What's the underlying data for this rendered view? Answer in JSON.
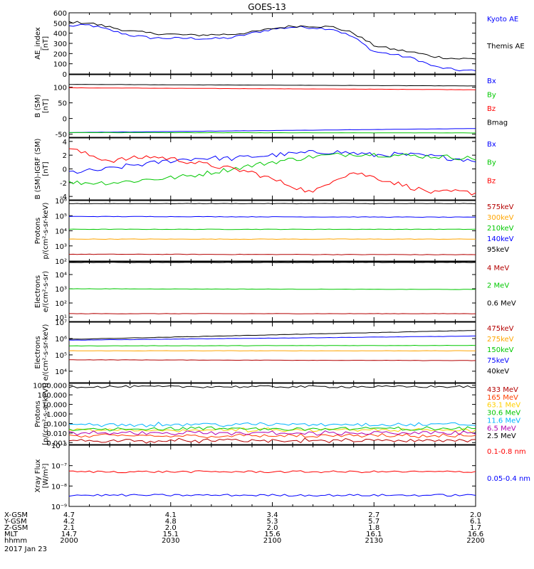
{
  "title": "GOES-13",
  "colors": {
    "blue": "#0000ff",
    "red": "#ff0000",
    "black": "#000000",
    "green": "#00c800",
    "orange": "#ffa500",
    "darkred": "#b40000",
    "yellow": "#ffd000",
    "cyan": "#00b4ff"
  },
  "chart_data": [
    {
      "id": "ae",
      "type": "line",
      "ylabel": [
        "AE_index",
        "[nT]"
      ],
      "ylim": [
        0,
        600
      ],
      "yticks": [
        "0",
        "100",
        "200",
        "300",
        "400",
        "500",
        "600"
      ],
      "series": [
        {
          "name": "Kyoto AE",
          "color": "#0000ff",
          "t": [
            0,
            10,
            20,
            30,
            40,
            50,
            60,
            70,
            80,
            90,
            100,
            110,
            120,
            130,
            140,
            150,
            160,
            170,
            180,
            190,
            200
          ],
          "y": [
            470,
            480,
            430,
            380,
            355,
            350,
            350,
            345,
            355,
            400,
            440,
            460,
            455,
            440,
            360,
            220,
            190,
            150,
            70,
            40,
            30
          ]
        },
        {
          "name": "Themis AE",
          "color": "#000000",
          "t": [
            0,
            10,
            20,
            30,
            40,
            50,
            60,
            70,
            80,
            90,
            100,
            110,
            120,
            130,
            140,
            150,
            160,
            170,
            180,
            190,
            200
          ],
          "y": [
            510,
            500,
            460,
            420,
            400,
            390,
            380,
            385,
            390,
            410,
            445,
            470,
            470,
            460,
            400,
            280,
            240,
            210,
            170,
            150,
            150
          ]
        }
      ]
    },
    {
      "id": "bsm",
      "type": "line",
      "ylabel": [
        "B (SM)",
        "[nT]"
      ],
      "ylim": [
        -60,
        140
      ],
      "yticks": [
        "-50",
        "0",
        "50",
        "100"
      ],
      "series": [
        {
          "name": "Bx",
          "color": "#0000ff",
          "t": [
            0,
            200
          ],
          "y": [
            -45,
            -32
          ]
        },
        {
          "name": "By",
          "color": "#00c800",
          "t": [
            0,
            200
          ],
          "y": [
            -45,
            -46
          ]
        },
        {
          "name": "Bz",
          "color": "#ff0000",
          "t": [
            0,
            200
          ],
          "y": [
            98,
            92
          ]
        },
        {
          "name": "Bmag",
          "color": "#000000",
          "t": [
            0,
            200
          ],
          "y": [
            109,
            104
          ]
        }
      ]
    },
    {
      "id": "bigrf",
      "type": "line",
      "ylabel": [
        "B (SM)-IGRF (SM)",
        "[nT]"
      ],
      "ylim": [
        -4.5,
        4.5
      ],
      "yticks": [
        "-4",
        "-2",
        "0",
        "2",
        "4"
      ],
      "series": [
        {
          "name": "Bx",
          "color": "#0000ff",
          "t": [
            0,
            10,
            20,
            30,
            40,
            50,
            60,
            70,
            80,
            90,
            100,
            110,
            120,
            130,
            140,
            150,
            160,
            170,
            180,
            190,
            200
          ],
          "y": [
            -0.5,
            -0.3,
            0,
            0.5,
            0.8,
            1.2,
            1.5,
            1.6,
            1.5,
            1.8,
            2,
            2.2,
            2.4,
            2.5,
            2.3,
            2,
            2.1,
            2,
            1.8,
            1.5,
            1.3
          ]
        },
        {
          "name": "By",
          "color": "#00c800",
          "t": [
            0,
            10,
            20,
            30,
            40,
            50,
            60,
            70,
            80,
            90,
            100,
            110,
            120,
            130,
            140,
            150,
            160,
            170,
            180,
            190,
            200
          ],
          "y": [
            -2,
            -2,
            -2,
            -1.8,
            -1.5,
            -1.3,
            -1,
            -0.5,
            0,
            0.5,
            1,
            1.4,
            1.8,
            2,
            2.2,
            2.1,
            2,
            1.9,
            1.8,
            1.7,
            1.5
          ]
        },
        {
          "name": "Bz",
          "color": "#ff0000",
          "t": [
            0,
            10,
            20,
            30,
            40,
            50,
            60,
            70,
            80,
            90,
            100,
            110,
            120,
            130,
            140,
            150,
            160,
            170,
            180,
            190,
            200
          ],
          "y": [
            3,
            2,
            1.2,
            1.5,
            1.8,
            1.5,
            1,
            0.5,
            0,
            -0.5,
            -1.5,
            -2.5,
            -3.5,
            -1.5,
            -0.5,
            -1.2,
            -2,
            -2.8,
            -3.5,
            -3.3,
            -3.5
          ]
        }
      ]
    },
    {
      "id": "protons",
      "type": "line",
      "ylabel": [
        "Protons",
        "p/(cm²-s-sr-keV)"
      ],
      "log": true,
      "ylim_exp": [
        2,
        6
      ],
      "yticks": [
        "10²",
        "10³",
        "10⁴",
        "10⁵",
        "10⁶"
      ],
      "series": [
        {
          "name": "575keV",
          "color": "#b40000",
          "t": [
            0,
            200
          ],
          "y_exp": [
            2.45,
            2.42
          ]
        },
        {
          "name": "300keV",
          "color": "#ffa500",
          "t": [
            0,
            200
          ],
          "y_exp": [
            3.45,
            3.45
          ]
        },
        {
          "name": "210keV",
          "color": "#00c800",
          "t": [
            0,
            200
          ],
          "y_exp": [
            4.1,
            4.1
          ]
        },
        {
          "name": "140keV",
          "color": "#0000ff",
          "t": [
            0,
            200
          ],
          "y_exp": [
            4.95,
            4.9
          ]
        },
        {
          "name": "95keV",
          "color": "#000000",
          "t": [
            0,
            200
          ],
          "y_exp": [
            5.8,
            5.8
          ]
        }
      ]
    },
    {
      "id": "electrons1",
      "type": "line",
      "ylabel": [
        "Electrons",
        "e/(cm²-s-sr)"
      ],
      "log": true,
      "ylim_exp": [
        0.7,
        4.9
      ],
      "yticks": [
        "10¹",
        "10²",
        "10³",
        "10⁴"
      ],
      "series": [
        {
          "name": "4 MeV",
          "color": "#b40000",
          "t": [
            0,
            200
          ],
          "y_exp": [
            1.25,
            1.25
          ]
        },
        {
          "name": "2 MeV",
          "color": "#00c800",
          "t": [
            0,
            200
          ],
          "y_exp": [
            3.0,
            2.95
          ]
        },
        {
          "name": "0.6 MeV",
          "color": "#000000",
          "t": [
            0,
            200
          ],
          "y_exp": [
            4.85,
            4.85
          ]
        }
      ]
    },
    {
      "id": "electrons2",
      "type": "line",
      "ylabel": [
        "Electrons",
        "e/(cm²-s-sr-keV)"
      ],
      "log": true,
      "ylim_exp": [
        3.3,
        7
      ],
      "yticks": [
        "10⁴",
        "10⁵",
        "10⁶",
        "10⁷"
      ],
      "series": [
        {
          "name": "475keV",
          "color": "#b40000",
          "t": [
            0,
            200
          ],
          "y_exp": [
            4.7,
            4.65
          ]
        },
        {
          "name": "275keV",
          "color": "#ffa500",
          "t": [
            0,
            200
          ],
          "y_exp": [
            5.25,
            5.25
          ]
        },
        {
          "name": "150keV",
          "color": "#00c800",
          "t": [
            0,
            200
          ],
          "y_exp": [
            5.55,
            5.58
          ]
        },
        {
          "name": "75keV",
          "color": "#0000ff",
          "t": [
            0,
            200
          ],
          "y_exp": [
            5.9,
            6.15
          ]
        },
        {
          "name": "40keV",
          "color": "#000000",
          "t": [
            0,
            200
          ],
          "y_exp": [
            5.95,
            6.5
          ]
        }
      ]
    },
    {
      "id": "protons2",
      "type": "line",
      "ylabel": [
        "Protons",
        "[p/(cm²-s-sr-keV)]"
      ],
      "log": true,
      "ylim_exp": [
        -3.2,
        3.2
      ],
      "yticks": [
        "0.001",
        "0.010",
        "0.100",
        "1.000",
        "10.000",
        "100.000",
        "1000.000"
      ],
      "series": [
        {
          "name": "433 MeV",
          "color": "#b40000",
          "t": [
            0,
            200
          ],
          "y_exp": [
            -2.8,
            -2.8
          ]
        },
        {
          "name": "165 MeV",
          "color": "#ff4000",
          "t": [
            0,
            200
          ],
          "y_exp": [
            -2.3,
            -2.3
          ]
        },
        {
          "name": "63.1 MeV",
          "color": "#ffd000",
          "t": [
            0,
            200
          ],
          "y_exp": [
            -1.7,
            -1.7
          ]
        },
        {
          "name": "30.6 MeV",
          "color": "#00c800",
          "t": [
            0,
            200
          ],
          "y_exp": [
            -1.55,
            -1.55
          ]
        },
        {
          "name": "11.6 MeV",
          "color": "#00b4ff",
          "t": [
            0,
            200
          ],
          "y_exp": [
            -1.1,
            -1.1
          ]
        },
        {
          "name": "6.5 MeV",
          "color": "#b000b0",
          "t": [
            0,
            200
          ],
          "y_exp": [
            -2.0,
            -2.0
          ]
        },
        {
          "name": "2.5 MeV",
          "color": "#000000",
          "t": [
            0,
            200
          ],
          "y_exp": [
            2.85,
            2.85
          ]
        }
      ]
    },
    {
      "id": "xray",
      "type": "line",
      "ylabel": [
        "Xray Flux",
        "[W/m²]"
      ],
      "log": true,
      "ylim_exp": [
        -9,
        -6
      ],
      "yticks": [
        "10⁻⁹",
        "10⁻⁸",
        "10⁻⁷",
        "10⁻⁶"
      ],
      "series": [
        {
          "name": "0.1-0.8 nm",
          "color": "#ff0000",
          "t": [
            0,
            200
          ],
          "y_exp": [
            -7.3,
            -7.3
          ]
        },
        {
          "name": "0.05-0.4 nm",
          "color": "#0000ff",
          "t": [
            0,
            200
          ],
          "y_exp": [
            -8.45,
            -8.45
          ]
        }
      ]
    }
  ],
  "orbit_table": {
    "labels": [
      "X-GSM",
      "Y-GSM",
      "Z-GSM",
      "MLT",
      "hhmm"
    ],
    "columns": [
      [
        "4.7",
        "4.2",
        "2.1",
        "14.7",
        "2000"
      ],
      [
        "4.1",
        "4.8",
        "2.0",
        "15.1",
        "2030"
      ],
      [
        "3.4",
        "5.3",
        "2.0",
        "15.6",
        "2100"
      ],
      [
        "2.7",
        "5.7",
        "1.8",
        "16.1",
        "2130"
      ],
      [
        "2.0",
        "6.1",
        "1.7",
        "16.6",
        "2200"
      ]
    ],
    "date": "2017 Jan 23"
  }
}
